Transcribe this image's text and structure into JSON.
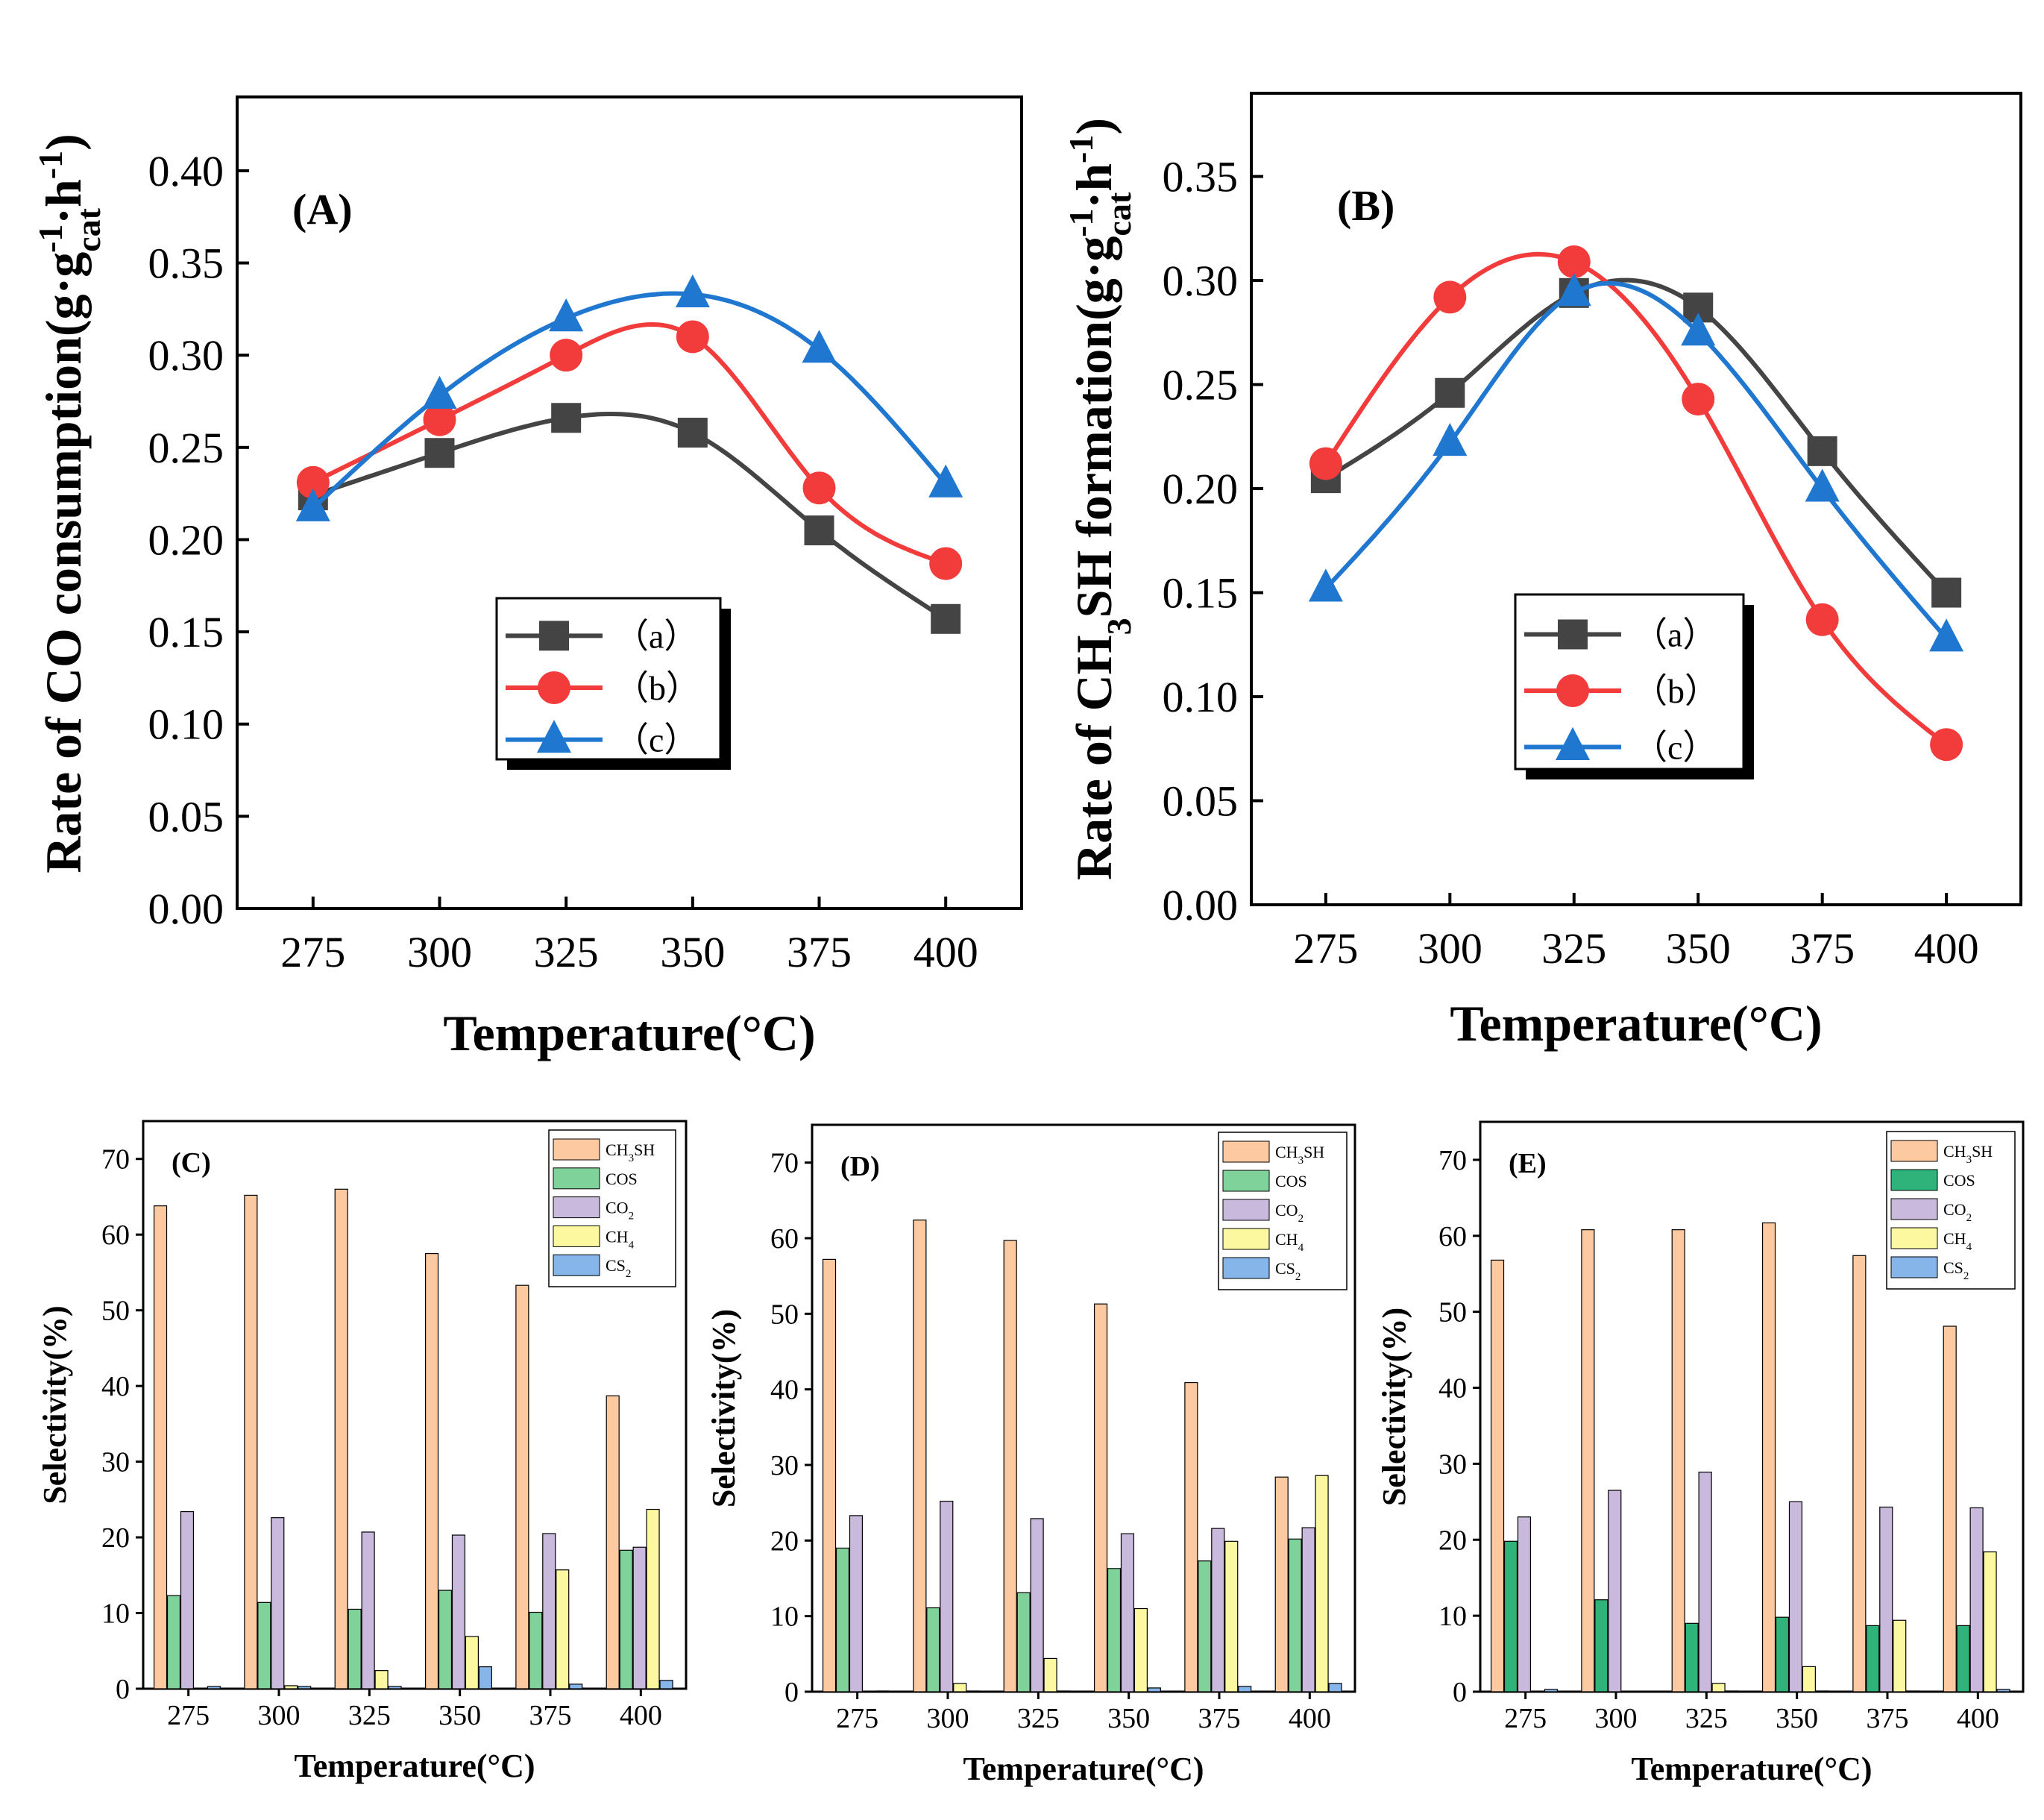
{
  "chart_data": [
    {
      "panel": "(A)",
      "type": "line",
      "xlabel": "Temperature(°C)",
      "ylabel": "Rate of CO consumption(g·g_cat^-1·h^-1)",
      "ylabel_parts": {
        "main": "Rate of CO consumption(g·g",
        "sub": "cat",
        "sup1": "-1",
        "mid": "·h",
        "sup2": "-1",
        "end": ")"
      },
      "x": [
        275,
        300,
        325,
        350,
        375,
        400
      ],
      "xlim": [
        260,
        415
      ],
      "ylim": [
        0.0,
        0.44
      ],
      "yticks": [
        0.0,
        0.05,
        0.1,
        0.15,
        0.2,
        0.25,
        0.3,
        0.35,
        0.4
      ],
      "ytick_labels": [
        "0.00",
        "0.05",
        "0.10",
        "0.15",
        "0.20",
        "0.25",
        "0.30",
        "0.35",
        "0.40"
      ],
      "xtick_labels": [
        "275",
        "300",
        "325",
        "350",
        "375",
        "400"
      ],
      "series": [
        {
          "name": "（a）",
          "marker": "square",
          "color": "#444444",
          "values": [
            0.224,
            0.247,
            0.266,
            0.258,
            0.205,
            0.157
          ]
        },
        {
          "name": "（b）",
          "marker": "circle",
          "color": "#f23c3c",
          "values": [
            0.231,
            0.265,
            0.3,
            0.31,
            0.228,
            0.187
          ]
        },
        {
          "name": "（c）",
          "marker": "triangle",
          "color": "#1f77d0",
          "values": [
            0.217,
            0.278,
            0.32,
            0.333,
            0.303,
            0.23
          ]
        }
      ]
    },
    {
      "panel": "(B)",
      "type": "line",
      "xlabel": "Temperature(°C)",
      "ylabel": "Rate of CH3SH formation(g·g_cat^-1·h^-1)",
      "ylabel_parts": {
        "main": "Rate of CH",
        "sub0": "3",
        "main2": "SH formation(g·g",
        "sub": "cat",
        "sup1": "-1",
        "mid": "·h",
        "sup2": "-1",
        "end": ")"
      },
      "x": [
        275,
        300,
        325,
        350,
        375,
        400
      ],
      "xlim": [
        260,
        415
      ],
      "ylim": [
        0.0,
        0.39
      ],
      "yticks": [
        0.0,
        0.05,
        0.1,
        0.15,
        0.2,
        0.25,
        0.3,
        0.35
      ],
      "ytick_labels": [
        "0.00",
        "0.05",
        "0.10",
        "0.15",
        "0.20",
        "0.25",
        "0.30",
        "0.35"
      ],
      "xtick_labels": [
        "275",
        "300",
        "325",
        "350",
        "375",
        "400"
      ],
      "series": [
        {
          "name": "（a）",
          "marker": "square",
          "color": "#444444",
          "values": [
            0.205,
            0.246,
            0.294,
            0.287,
            0.218,
            0.15
          ]
        },
        {
          "name": "（b）",
          "marker": "circle",
          "color": "#f23c3c",
          "values": [
            0.212,
            0.292,
            0.309,
            0.243,
            0.137,
            0.077
          ]
        },
        {
          "name": "（c）",
          "marker": "triangle",
          "color": "#1f77d0",
          "values": [
            0.152,
            0.222,
            0.294,
            0.275,
            0.2,
            0.128
          ]
        }
      ]
    },
    {
      "panel": "(C)",
      "type": "bar",
      "xlabel": "Temperature(°C)",
      "ylabel": "Selectivity(%)",
      "categories": [
        "275",
        "300",
        "325",
        "350",
        "375",
        "400"
      ],
      "ylim": [
        0,
        75
      ],
      "yticks": [
        0,
        10,
        20,
        30,
        40,
        50,
        60,
        70
      ],
      "ytick_labels": [
        "0",
        "10",
        "20",
        "30",
        "40",
        "50",
        "60",
        "70"
      ],
      "series": [
        {
          "name": "CH3SH",
          "label_main": "CH",
          "label_sub": "3",
          "label_end": "SH",
          "color": "#fcc9a0",
          "values": [
            63.8,
            65.2,
            66.0,
            57.5,
            53.3,
            38.7
          ]
        },
        {
          "name": "COS",
          "label_main": "COS",
          "label_sub": "",
          "label_end": "",
          "color": "#7fd39a",
          "values": [
            12.3,
            11.4,
            10.5,
            13.0,
            10.1,
            18.3
          ]
        },
        {
          "name": "CO2",
          "label_main": "CO",
          "label_sub": "2",
          "label_end": "",
          "color": "#c9b9dd",
          "values": [
            23.4,
            22.6,
            20.7,
            20.3,
            20.5,
            18.7
          ]
        },
        {
          "name": "CH4",
          "label_main": "CH",
          "label_sub": "4",
          "label_end": "",
          "color": "#fbf8a0",
          "values": [
            0.0,
            0.4,
            2.4,
            6.9,
            15.7,
            23.7
          ]
        },
        {
          "name": "CS2",
          "label_main": "CS",
          "label_sub": "2",
          "label_end": "",
          "color": "#86b5ea",
          "values": [
            0.3,
            0.3,
            0.3,
            2.9,
            0.6,
            1.1
          ]
        }
      ]
    },
    {
      "panel": "(D)",
      "type": "bar",
      "xlabel": "Temperature(°C)",
      "ylabel": "Selectivity(%)",
      "categories": [
        "275",
        "300",
        "325",
        "350",
        "375",
        "400"
      ],
      "ylim": [
        0,
        75
      ],
      "yticks": [
        0,
        10,
        20,
        30,
        40,
        50,
        60,
        70
      ],
      "ytick_labels": [
        "0",
        "10",
        "20",
        "30",
        "40",
        "50",
        "60",
        "70"
      ],
      "series": [
        {
          "name": "CH3SH",
          "label_main": "CH",
          "label_sub": "3",
          "label_end": "SH",
          "color": "#fcc9a0",
          "values": [
            57.2,
            62.4,
            59.7,
            51.3,
            40.9,
            28.4
          ]
        },
        {
          "name": "COS",
          "label_main": "COS",
          "label_sub": "",
          "label_end": "",
          "color": "#7fd39a",
          "values": [
            19.0,
            11.1,
            13.1,
            16.3,
            17.3,
            20.2
          ]
        },
        {
          "name": "CO2",
          "label_main": "CO",
          "label_sub": "2",
          "label_end": "",
          "color": "#c9b9dd",
          "values": [
            23.3,
            25.2,
            22.9,
            20.9,
            21.6,
            21.7
          ]
        },
        {
          "name": "CH4",
          "label_main": "CH",
          "label_sub": "4",
          "label_end": "",
          "color": "#fbf8a0",
          "values": [
            0.0,
            1.1,
            4.4,
            11.0,
            19.9,
            28.6
          ]
        },
        {
          "name": "CS2",
          "label_main": "CS",
          "label_sub": "2",
          "label_end": "",
          "color": "#86b5ea",
          "values": [
            0.1,
            0.1,
            0.1,
            0.5,
            0.7,
            1.1
          ]
        }
      ]
    },
    {
      "panel": "(E)",
      "type": "bar",
      "xlabel": "Temperature(°C)",
      "ylabel": "Selectivity(%)",
      "categories": [
        "275",
        "300",
        "325",
        "350",
        "375",
        "400"
      ],
      "ylim": [
        0,
        75
      ],
      "yticks": [
        0,
        10,
        20,
        30,
        40,
        50,
        60,
        70
      ],
      "ytick_labels": [
        "0",
        "10",
        "20",
        "30",
        "40",
        "50",
        "60",
        "70"
      ],
      "series": [
        {
          "name": "CH3SH",
          "label_main": "CH",
          "label_sub": "3",
          "label_end": "SH",
          "color": "#fcc9a0",
          "values": [
            56.8,
            60.8,
            60.8,
            61.7,
            57.4,
            48.1
          ]
        },
        {
          "name": "COS",
          "label_main": "COS",
          "label_sub": "",
          "label_end": "",
          "color": "#2fb37a",
          "values": [
            19.8,
            12.1,
            9.0,
            9.8,
            8.7,
            8.7
          ]
        },
        {
          "name": "CO2",
          "label_main": "CO",
          "label_sub": "2",
          "label_end": "",
          "color": "#c9b9dd",
          "values": [
            23.0,
            26.5,
            28.9,
            25.0,
            24.3,
            24.2
          ]
        },
        {
          "name": "CH4",
          "label_main": "CH",
          "label_sub": "4",
          "label_end": "",
          "color": "#fbf8a0",
          "values": [
            0.0,
            0.0,
            1.1,
            3.3,
            9.4,
            18.4
          ]
        },
        {
          "name": "CS2",
          "label_main": "CS",
          "label_sub": "2",
          "label_end": "",
          "color": "#86b5ea",
          "values": [
            0.3,
            0.0,
            0.1,
            0.1,
            0.1,
            0.3
          ]
        }
      ]
    }
  ]
}
